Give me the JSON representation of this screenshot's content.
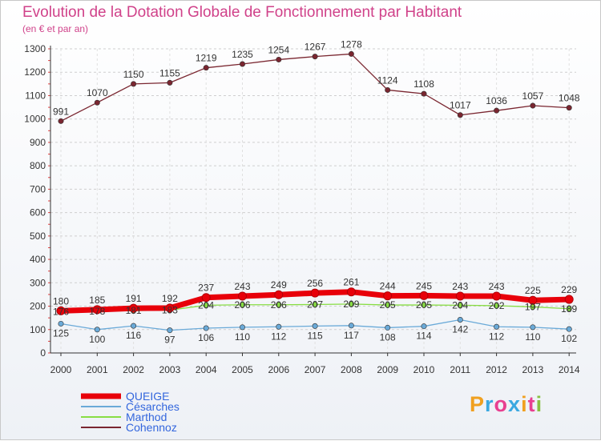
{
  "header": {
    "title": "Evolution de la Dotation Globale de Fonctionnement par Habitant",
    "subtitle": "(en € et par an)"
  },
  "logo": {
    "text": "Proxiti",
    "parts": [
      "P",
      "r",
      "o",
      "x",
      "i",
      "t",
      "i"
    ]
  },
  "chart_data": {
    "type": "line",
    "title": "Evolution de la Dotation Globale de Fonctionnement par Habitant",
    "subtitle": "(en € et par an)",
    "xlabel": "",
    "ylabel": "",
    "ylim": [
      0,
      1300
    ],
    "yticks": [
      0,
      100,
      200,
      300,
      400,
      500,
      600,
      700,
      800,
      900,
      1000,
      1100,
      1200,
      1300
    ],
    "categories": [
      "2000",
      "2001",
      "2002",
      "2003",
      "2004",
      "2005",
      "2006",
      "2007",
      "2008",
      "2009",
      "2010",
      "2011",
      "2012",
      "2013",
      "2014"
    ],
    "grid": true,
    "legend_position": "bottom-left",
    "series": [
      {
        "name": "QUEIGE",
        "color": "#e8000a",
        "values": [
          180,
          185,
          191,
          192,
          237,
          243,
          249,
          256,
          261,
          244,
          245,
          243,
          243,
          225,
          229
        ],
        "labels": [
          "180",
          "185",
          "191",
          "192",
          "237",
          "243",
          "249",
          "256",
          "261",
          "244",
          "245",
          "243",
          "243",
          "225",
          "229"
        ]
      },
      {
        "name": "Césarches",
        "color": "#6aaad8",
        "values": [
          125,
          100,
          116,
          97,
          106,
          110,
          112,
          115,
          117,
          108,
          114,
          142,
          112,
          110,
          102
        ],
        "labels": [
          "125",
          "100",
          "116",
          "97",
          "106",
          "110",
          "112",
          "115",
          "117",
          "108",
          "114",
          "142",
          "112",
          "110",
          "102"
        ]
      },
      {
        "name": "Marthod",
        "color": "#88dd44",
        "values": [
          176,
          178,
          181,
          183,
          204,
          206,
          206,
          207,
          209,
          205,
          205,
          204,
          202,
          197,
          189
        ],
        "labels": [
          "176",
          "178",
          "181",
          "183",
          "204",
          "206",
          "206",
          "207",
          "209",
          "205",
          "205",
          "204",
          "202",
          "197",
          "189"
        ]
      },
      {
        "name": "Cohennoz",
        "color": "#7a2630",
        "values": [
          991,
          1070,
          1150,
          1155,
          1219,
          1235,
          1254,
          1267,
          1278,
          1124,
          1108,
          1017,
          1036,
          1057,
          1048
        ],
        "labels": [
          "991",
          "1070",
          "1150",
          "1155",
          "1219",
          "1235",
          "1254",
          "1267",
          "1278",
          "1124",
          "1108",
          "1017",
          "1036",
          "1057",
          "1048"
        ]
      }
    ]
  }
}
